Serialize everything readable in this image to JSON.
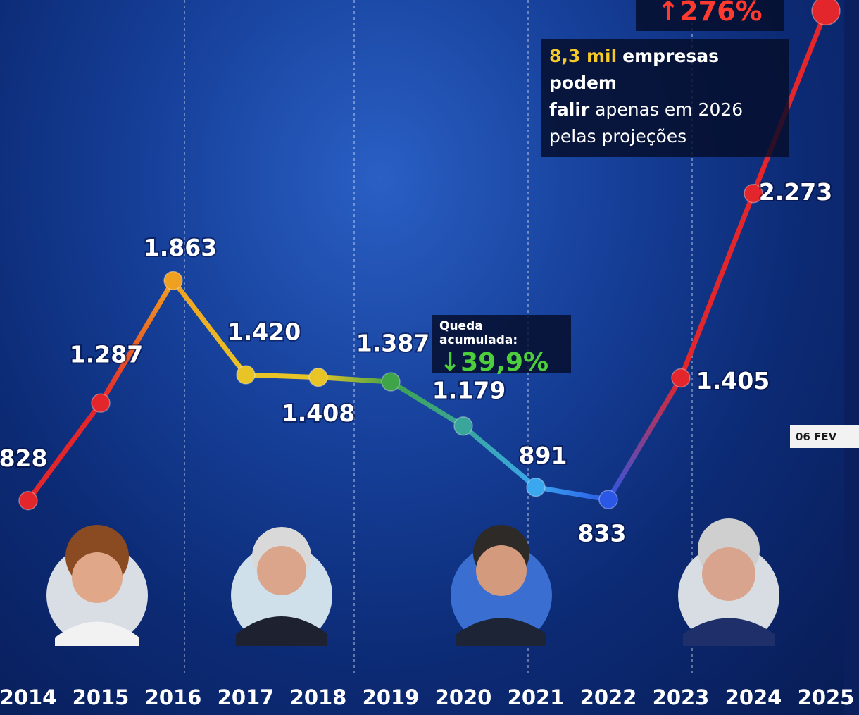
{
  "chart_data": {
    "type": "line",
    "categories": [
      "2014",
      "2015",
      "2016",
      "2017",
      "2018",
      "2019",
      "2020",
      "2021",
      "2022",
      "2023",
      "2024",
      "2025"
    ],
    "values": [
      828,
      1287,
      1863,
      1420,
      1408,
      1387,
      1179,
      891,
      833,
      1405,
      2273,
      3132
    ],
    "value_labels": [
      "828",
      "1.287",
      "1.863",
      "1.420",
      "1.408",
      "1.387",
      "1.179",
      "891",
      "833",
      "1.405",
      "2.273",
      null
    ],
    "point_colors": [
      "#e3262b",
      "#e3262b",
      "#f0a020",
      "#e8c426",
      "#e8c426",
      "#3fa34a",
      "#3aa59a",
      "#3aa7ef",
      "#2b57e6",
      "#e3262b",
      "#e3262b",
      "#e3262b"
    ],
    "ylim": [
      300,
      3150
    ],
    "annotations": {
      "increase": "↑276%",
      "projection": {
        "highlight": "8,3 mil",
        "bold1": "empresas podem",
        "bold2": "falir",
        "rest1": "apenas em 2026",
        "rest2": "pelas projeções"
      },
      "drop_title": "Queda acumulada:",
      "drop_value": "↓39,9%",
      "date_tag": "06 FEV"
    }
  }
}
